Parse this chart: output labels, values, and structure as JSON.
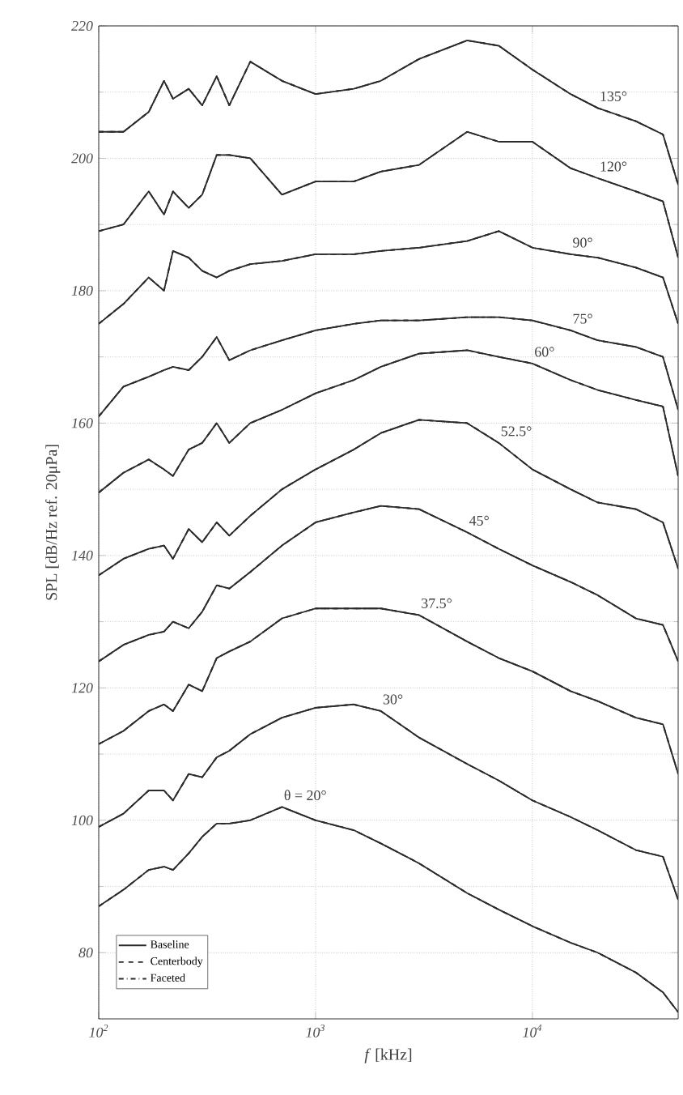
{
  "chart_data": {
    "type": "line",
    "xlabel": "*f* [kHz]",
    "ylabel": "SPL [dB/Hz ref. 20μPa]",
    "log": "x",
    "grid": true,
    "legend": "bottom left",
    "marker": "none",
    "xlim": [
      100,
      47000
    ],
    "ylim": [
      70,
      220
    ],
    "xticks": [
      {
        "value": 100,
        "label": "10$^{2}$"
      },
      {
        "value": 1000,
        "label": "10$^{3}$"
      },
      {
        "value": 10000,
        "label": "10$^{4}$"
      }
    ],
    "yticks": [
      80,
      100,
      120,
      140,
      160,
      180,
      200,
      220
    ],
    "x": [
      100,
      130,
      170,
      200,
      220,
      260,
      300,
      350,
      400,
      500,
      700,
      1000,
      1500,
      2000,
      3000,
      5000,
      7000,
      10000,
      15000,
      20000,
      30000,
      40000,
      47000
    ],
    "series": [
      {
        "name": "Baseline",
        "color": "#2b2b2b",
        "line_style": "solid",
        "values": [
          204,
          204,
          207,
          211.7,
          209,
          210.5,
          208,
          212.4,
          208,
          214.6,
          211.7,
          209.7,
          210.5,
          211.7,
          215,
          217.8,
          217,
          213.4,
          209.7,
          207.6,
          205.6,
          203.6,
          196
        ]
      },
      {
        "name": "Centerbody",
        "color": "#2b2b2b",
        "line_style": "dashed",
        "values": [
          204,
          204,
          207,
          211.7,
          209,
          210.5,
          208,
          212.4,
          208,
          214.6,
          211.7,
          209.7,
          210.5,
          211.7,
          215,
          217.8,
          217,
          213.4,
          209.7,
          207.6,
          205.6,
          203.6,
          196
        ]
      },
      {
        "name": "Faceted",
        "color": "#2b2b2b",
        "line_style": "dashdot",
        "values": [
          204,
          204,
          207,
          211.7,
          209,
          210.5,
          208,
          212.4,
          208,
          214.6,
          211.7,
          209.7,
          210.5,
          211.7,
          215,
          217.8,
          217,
          213.4,
          209.7,
          207.6,
          205.6,
          203.6,
          196
        ]
      },
      {
        "color": "#2b2b2b",
        "line_style": "solid",
        "values": [
          189,
          190,
          195,
          191.5,
          195,
          192.5,
          194.5,
          200.5,
          200.5,
          200,
          194.5,
          196.5,
          196.5,
          198,
          199,
          204,
          202.5,
          202.5,
          198.5,
          197,
          195,
          193.5,
          185
        ]
      },
      {
        "color": "#2b2b2b",
        "line_style": "dashed",
        "values": [
          189,
          190,
          195,
          191.5,
          195,
          192.5,
          194.5,
          200.5,
          200.5,
          200,
          194.5,
          196.5,
          196.5,
          198,
          199,
          204,
          202.5,
          202.5,
          198.5,
          197,
          195,
          193.5,
          185
        ]
      },
      {
        "color": "#2b2b2b",
        "line_style": "dashdot",
        "values": [
          189,
          190,
          195,
          191.5,
          195,
          192.5,
          194.5,
          200.5,
          200.5,
          200,
          194.5,
          196.5,
          196.5,
          198,
          199,
          204,
          202.5,
          202.5,
          198.5,
          197,
          195,
          193.5,
          185
        ]
      },
      {
        "color": "#2b2b2b",
        "line_style": "solid",
        "values": [
          175,
          178,
          182,
          180,
          186,
          185,
          183,
          182,
          183,
          184,
          184.5,
          185.5,
          185.5,
          186,
          186.5,
          187.5,
          189,
          186.5,
          185.5,
          185,
          183.5,
          182,
          175
        ]
      },
      {
        "color": "#2b2b2b",
        "line_style": "dashed",
        "values": [
          175,
          178,
          182,
          180,
          186,
          185,
          183,
          182,
          183,
          184,
          184.5,
          185.5,
          185.5,
          186,
          186.5,
          187.5,
          189,
          186.5,
          185.5,
          185,
          183.5,
          182,
          175
        ]
      },
      {
        "color": "#2b2b2b",
        "line_style": "dashdot",
        "values": [
          175,
          178,
          182,
          180,
          186,
          185,
          183,
          182,
          183,
          184,
          184.5,
          185.5,
          185.5,
          186,
          186.5,
          187.5,
          189,
          186.5,
          185.5,
          185,
          183.5,
          182,
          175
        ]
      },
      {
        "color": "#2b2b2b",
        "line_style": "solid",
        "values": [
          161,
          165.5,
          167,
          168,
          168.5,
          168,
          170,
          173,
          169.5,
          171,
          172.5,
          174,
          175,
          175.5,
          175.5,
          176,
          176,
          175.5,
          174,
          172.5,
          171.5,
          170,
          162
        ]
      },
      {
        "color": "#2b2b2b",
        "line_style": "dashed",
        "values": [
          161,
          165.5,
          167,
          168,
          168.5,
          168,
          170,
          173,
          169.5,
          171,
          172.5,
          174,
          175,
          175.5,
          175.5,
          176,
          176,
          175.5,
          174,
          172.5,
          171.5,
          170,
          162
        ]
      },
      {
        "color": "#2b2b2b",
        "line_style": "dashdot",
        "values": [
          161,
          165.5,
          167,
          168,
          168.5,
          168,
          170,
          173,
          169.5,
          171,
          172.5,
          174,
          175,
          175.5,
          175.5,
          176,
          176,
          175.5,
          174,
          172.5,
          171.5,
          170,
          162
        ]
      },
      {
        "color": "#2b2b2b",
        "line_style": "solid",
        "values": [
          149.5,
          152.5,
          154.5,
          153,
          152,
          156,
          157,
          160,
          157,
          160,
          162,
          164.5,
          166.5,
          168.5,
          170.5,
          171,
          170,
          169,
          166.5,
          165,
          163.5,
          162.5,
          152
        ]
      },
      {
        "color": "#2b2b2b",
        "line_style": "dashed",
        "values": [
          149.5,
          152.5,
          154.5,
          153,
          152,
          156,
          157,
          160,
          157,
          160,
          162,
          164.5,
          166.5,
          168.5,
          170.5,
          171,
          170,
          169,
          166.5,
          165,
          163.5,
          162.5,
          152
        ]
      },
      {
        "color": "#2b2b2b",
        "line_style": "dashdot",
        "values": [
          149.5,
          152.5,
          154.5,
          153,
          152,
          156,
          157,
          160,
          157,
          160,
          162,
          164.5,
          166.5,
          168.5,
          170.5,
          171,
          170,
          169,
          166.5,
          165,
          163.5,
          162.5,
          152
        ]
      },
      {
        "color": "#2b2b2b",
        "line_style": "solid",
        "values": [
          137,
          139.5,
          141,
          141.5,
          139.5,
          144,
          142,
          145,
          143,
          146,
          150,
          153,
          156,
          158.5,
          160.5,
          160,
          157,
          153,
          150,
          148,
          147,
          145,
          138
        ]
      },
      {
        "color": "#2b2b2b",
        "line_style": "dashed",
        "values": [
          137,
          139.5,
          141,
          141.5,
          139.5,
          144,
          142,
          145,
          143,
          146,
          150,
          153,
          156,
          158.5,
          160.5,
          160,
          157,
          153,
          150,
          148,
          147,
          145,
          138
        ]
      },
      {
        "color": "#2b2b2b",
        "line_style": "dashdot",
        "values": [
          137,
          139.5,
          141,
          141.5,
          139.5,
          144,
          142,
          145,
          143,
          146,
          150,
          153,
          156,
          158.5,
          160.5,
          160,
          157,
          153,
          150,
          148,
          147,
          145,
          138
        ]
      },
      {
        "color": "#2b2b2b",
        "line_style": "solid",
        "values": [
          124,
          126.5,
          128,
          128.5,
          130,
          129,
          131.5,
          135.5,
          135,
          137.5,
          141.5,
          145,
          146.5,
          147.5,
          147,
          143.5,
          141,
          138.5,
          136,
          134,
          130.5,
          129.5,
          124
        ]
      },
      {
        "color": "#2b2b2b",
        "line_style": "dashed",
        "values": [
          124,
          126.5,
          128,
          128.5,
          130,
          129,
          131.5,
          135.5,
          135,
          137.5,
          141.5,
          145,
          146.5,
          147.5,
          147,
          143.5,
          141,
          138.5,
          136,
          134,
          130.5,
          129.5,
          124
        ]
      },
      {
        "color": "#2b2b2b",
        "line_style": "dashdot",
        "values": [
          124,
          126.5,
          128,
          128.5,
          130,
          129,
          131.5,
          135.5,
          135,
          137.5,
          141.5,
          145,
          146.5,
          147.5,
          147,
          143.5,
          141,
          138.5,
          136,
          134,
          130.5,
          129.5,
          124
        ]
      },
      {
        "color": "#2b2b2b",
        "line_style": "solid",
        "values": [
          111.5,
          113.5,
          116.5,
          117.5,
          116.5,
          120.5,
          119.5,
          124.5,
          125.5,
          127,
          130.5,
          132,
          132,
          132,
          131,
          127,
          124.5,
          122.5,
          119.5,
          118,
          115.5,
          114.5,
          107
        ]
      },
      {
        "color": "#2b2b2b",
        "line_style": "dashed",
        "values": [
          111.5,
          113.5,
          116.5,
          117.5,
          116.5,
          120.5,
          119.5,
          124.5,
          125.5,
          127,
          130.5,
          132,
          132,
          132,
          131,
          127,
          124.5,
          122.5,
          119.5,
          118,
          115.5,
          114.5,
          107
        ]
      },
      {
        "color": "#2b2b2b",
        "line_style": "dashdot",
        "values": [
          111.5,
          113.5,
          116.5,
          117.5,
          116.5,
          120.5,
          119.5,
          124.5,
          125.5,
          127,
          130.5,
          132,
          132,
          132,
          131,
          127,
          124.5,
          122.5,
          119.5,
          118,
          115.5,
          114.5,
          107
        ]
      },
      {
        "color": "#2b2b2b",
        "line_style": "solid",
        "values": [
          99,
          101,
          104.5,
          104.5,
          103,
          107,
          106.5,
          109.5,
          110.5,
          113,
          115.5,
          117,
          117.5,
          116.5,
          112.5,
          108.5,
          106,
          103,
          100.5,
          98.5,
          95.5,
          94.5,
          88
        ]
      },
      {
        "color": "#2b2b2b",
        "line_style": "dashed",
        "values": [
          99,
          101,
          104.5,
          104.5,
          103,
          107,
          106.5,
          109.5,
          110.5,
          113,
          115.5,
          117,
          117.5,
          116.5,
          112.5,
          108.5,
          106,
          103,
          100.5,
          98.5,
          95.5,
          94.5,
          88
        ]
      },
      {
        "color": "#2b2b2b",
        "line_style": "dashdot",
        "values": [
          99,
          101,
          104.5,
          104.5,
          103,
          107,
          106.5,
          109.5,
          110.5,
          113,
          115.5,
          117,
          117.5,
          116.5,
          112.5,
          108.5,
          106,
          103,
          100.5,
          98.5,
          95.5,
          94.5,
          88
        ]
      },
      {
        "color": "#2b2b2b",
        "line_style": "solid",
        "values": [
          87,
          89.5,
          92.5,
          93,
          92.5,
          95,
          97.5,
          99.5,
          99.5,
          100,
          102,
          100,
          98.5,
          96.5,
          93.5,
          89,
          86.5,
          84,
          81.5,
          80,
          77,
          74,
          71
        ]
      },
      {
        "color": "#2b2b2b",
        "line_style": "dashed",
        "values": [
          87,
          89.5,
          92.5,
          93,
          92.5,
          95,
          97.5,
          99.5,
          99.5,
          100,
          102,
          100,
          98.5,
          96.5,
          93.5,
          89,
          86.5,
          84,
          81.5,
          80,
          77,
          74,
          71
        ]
      },
      {
        "color": "#2b2b2b",
        "line_style": "dashdot",
        "values": [
          87,
          89.5,
          92.5,
          93,
          92.5,
          95,
          97.5,
          99.5,
          99.5,
          100,
          102,
          100,
          98.5,
          96.5,
          93.5,
          89,
          86.5,
          84,
          81.5,
          80,
          77,
          74,
          71
        ]
      }
    ],
    "annotations": [
      {
        "text": "135°",
        "x": 20000,
        "y": 207.6
      },
      {
        "text": "120°",
        "x": 20000,
        "y": 197
      },
      {
        "text": "90°",
        "x": 15000,
        "y": 185.5
      },
      {
        "text": "75°",
        "x": 15000,
        "y": 174
      },
      {
        "text": "60°",
        "x": 10000,
        "y": 169
      },
      {
        "text": "52.5°",
        "x": 7000,
        "y": 157
      },
      {
        "text": "45°",
        "x": 5000,
        "y": 143.5
      },
      {
        "text": "37.5°",
        "x": 3000,
        "y": 131
      },
      {
        "text": "30°",
        "x": 2000,
        "y": 116.5
      },
      {
        "text": "θ = 20°",
        "x": 700,
        "y": 102
      }
    ]
  }
}
